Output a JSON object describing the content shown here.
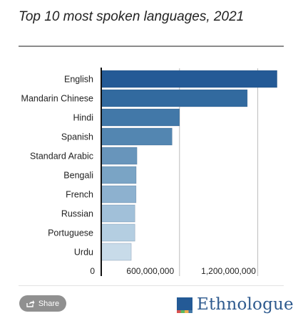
{
  "chart_data": {
    "type": "bar",
    "orientation": "horizontal",
    "title": "Top 10 most spoken languages, 2021",
    "categories": [
      "English",
      "Mandarin Chinese",
      "Hindi",
      "Spanish",
      "Standard Arabic",
      "Bengali",
      "French",
      "Russian",
      "Portuguese",
      "Urdu"
    ],
    "values": [
      1348000000,
      1120000000,
      600000000,
      543000000,
      274000000,
      268000000,
      267000000,
      258000000,
      258000000,
      230000000
    ],
    "x_ticks": [
      0,
      600000000,
      1200000000
    ],
    "x_tick_labels": [
      "0",
      "600,000,000",
      "1,200,000,000"
    ],
    "xlim": [
      0,
      1350000000
    ],
    "grid": true,
    "bar_colors": [
      "#245a96",
      "#326a9f",
      "#4278a8",
      "#5386b1",
      "#6895bb",
      "#7aa4c5",
      "#8db1cf",
      "#a1c0d9",
      "#b4cee1",
      "#c8dbe9"
    ]
  },
  "footer": {
    "share_label": "Share",
    "share_icon": "share-icon",
    "brand": "Ethnologue",
    "brand_colors": [
      "#245a96",
      "#d9534f",
      "#5cb85c",
      "#f0ad4e"
    ]
  }
}
